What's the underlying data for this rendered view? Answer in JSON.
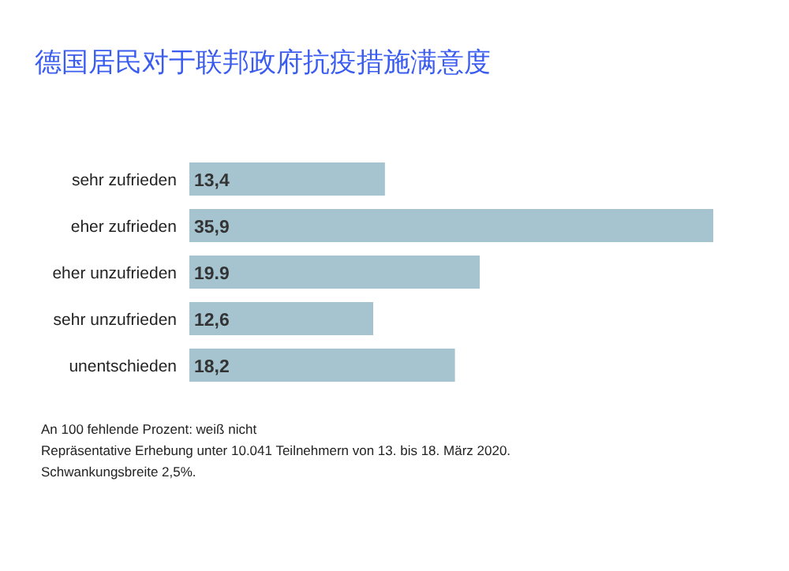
{
  "chart_data": {
    "type": "bar",
    "orientation": "horizontal",
    "title": "德国居民对于联邦政府抗疫措施满意度",
    "categories": [
      "sehr zufrieden",
      "eher zufrieden",
      "eher unzufrieden",
      "sehr unzufrieden",
      "unentschieden"
    ],
    "values": [
      13.4,
      35.9,
      19.9,
      12.6,
      18.2
    ],
    "value_labels": [
      "13,4",
      "35,9",
      "19.9",
      "12,6",
      "18,2"
    ],
    "color": "#a5c4d0",
    "annotations": [
      "An 100 fehlende Prozent: weiß nicht",
      "Repräsentative Erhebung unter 10.041 Teilnehmern von 13. bis 18. März 2020.",
      "Schwankungsbreite 2,5%."
    ]
  }
}
